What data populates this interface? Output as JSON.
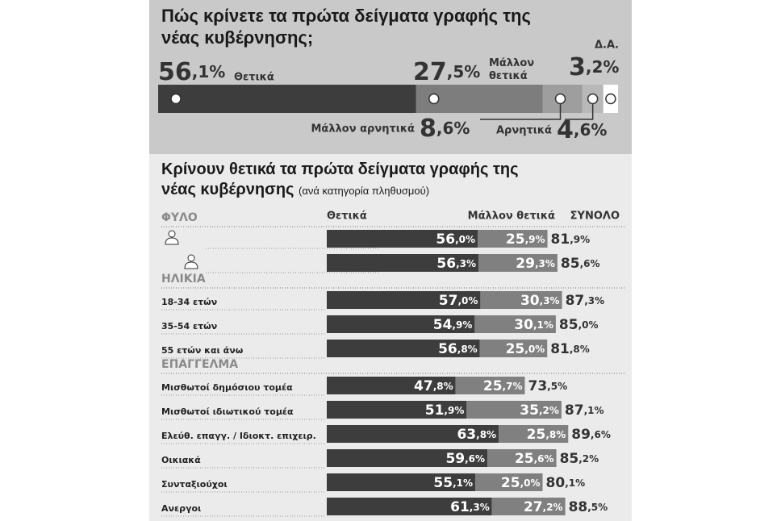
{
  "chart_data": [
    {
      "type": "stacked_bar",
      "title": "Πώς κρίνετε τα πρώτα δείγματα γραφής της νέας κυβέρνησης;",
      "categories": [
        "Θετικά",
        "Μάλλον θετικά",
        "Μάλλον αρνητικά",
        "Αρνητικά",
        "Δ.Α."
      ],
      "values": [
        56.1,
        27.5,
        8.6,
        4.6,
        3.2
      ],
      "value_labels": [
        "56,1%",
        "27,5%",
        "8,6%",
        "4,6%",
        "3,2%"
      ],
      "colors": [
        "#3d3d3d",
        "#7d7d7d",
        "#9e9e9e",
        "#b8b8b8",
        "#ffffff"
      ]
    },
    {
      "type": "bar",
      "title": "Κρίνουν θετικά τα πρώτα δείγματα γραφής της νέας κυβέρνησης",
      "subtitle": "(ανά κατηγορία πληθυσμού)",
      "series": [
        {
          "name": "Θετικά",
          "color": "#3d3d3d"
        },
        {
          "name": "Μάλλον θετικά",
          "color": "#808080"
        }
      ],
      "total_name": "ΣΥΝΟΛΟ",
      "groups": [
        {
          "name": "ΦΥΛΟ",
          "rows": [
            {
              "label": null,
              "values": [
                56.0,
                25.9
              ],
              "value_labels": [
                "56,0%",
                "25,9%"
              ],
              "total": 81.9,
              "total_label": "81,9%"
            },
            {
              "label": null,
              "values": [
                56.3,
                29.3
              ],
              "value_labels": [
                "56,3%",
                "29,3%"
              ],
              "total": 85.6,
              "total_label": "85,6%"
            }
          ]
        },
        {
          "name": "ΗΛΙΚΙΑ",
          "rows": [
            {
              "label": "18-34 ετών",
              "values": [
                57.0,
                30.3
              ],
              "value_labels": [
                "57,0%",
                "30,3%"
              ],
              "total": 87.3,
              "total_label": "87,3%"
            },
            {
              "label": "35-54 ετών",
              "values": [
                54.9,
                30.1
              ],
              "value_labels": [
                "54,9%",
                "30,1%"
              ],
              "total": 85.0,
              "total_label": "85,0%"
            },
            {
              "label": "55 ετών και άνω",
              "values": [
                56.8,
                25.0
              ],
              "value_labels": [
                "56,8%",
                "25,0%"
              ],
              "total": 81.8,
              "total_label": "81,8%"
            }
          ]
        },
        {
          "name": "ΕΠΑΓΓΕΛΜΑ",
          "rows": [
            {
              "label": "Μισθωτοί δημόσιου τομέα",
              "values": [
                47.8,
                25.7
              ],
              "value_labels": [
                "47,8%",
                "25,7%"
              ],
              "total": 73.5,
              "total_label": "73,5%"
            },
            {
              "label": "Μισθωτοί ιδιωτικού τομέα",
              "values": [
                51.9,
                35.2
              ],
              "value_labels": [
                "51,9%",
                "35,2%"
              ],
              "total": 87.1,
              "total_label": "87,1%"
            },
            {
              "label": "Ελεύθ. επαγγ. / Ιδιοκτ. επιχειρ.",
              "values": [
                63.8,
                25.8
              ],
              "value_labels": [
                "63,8%",
                "25,8%"
              ],
              "total": 89.6,
              "total_label": "89,6%"
            },
            {
              "label": "Οικιακά",
              "values": [
                59.6,
                25.6
              ],
              "value_labels": [
                "59,6%",
                "25,6%"
              ],
              "total": 85.2,
              "total_label": "85,2%"
            },
            {
              "label": "Συνταξιούχοι",
              "values": [
                55.1,
                25.0
              ],
              "value_labels": [
                "55,1%",
                "25,0%"
              ],
              "total": 80.1,
              "total_label": "80,1%"
            },
            {
              "label": "Ανεργοι",
              "values": [
                61.3,
                27.2
              ],
              "value_labels": [
                "61,3%",
                "27,2%"
              ],
              "total": 88.5,
              "total_label": "88,5%"
            }
          ]
        }
      ]
    }
  ]
}
